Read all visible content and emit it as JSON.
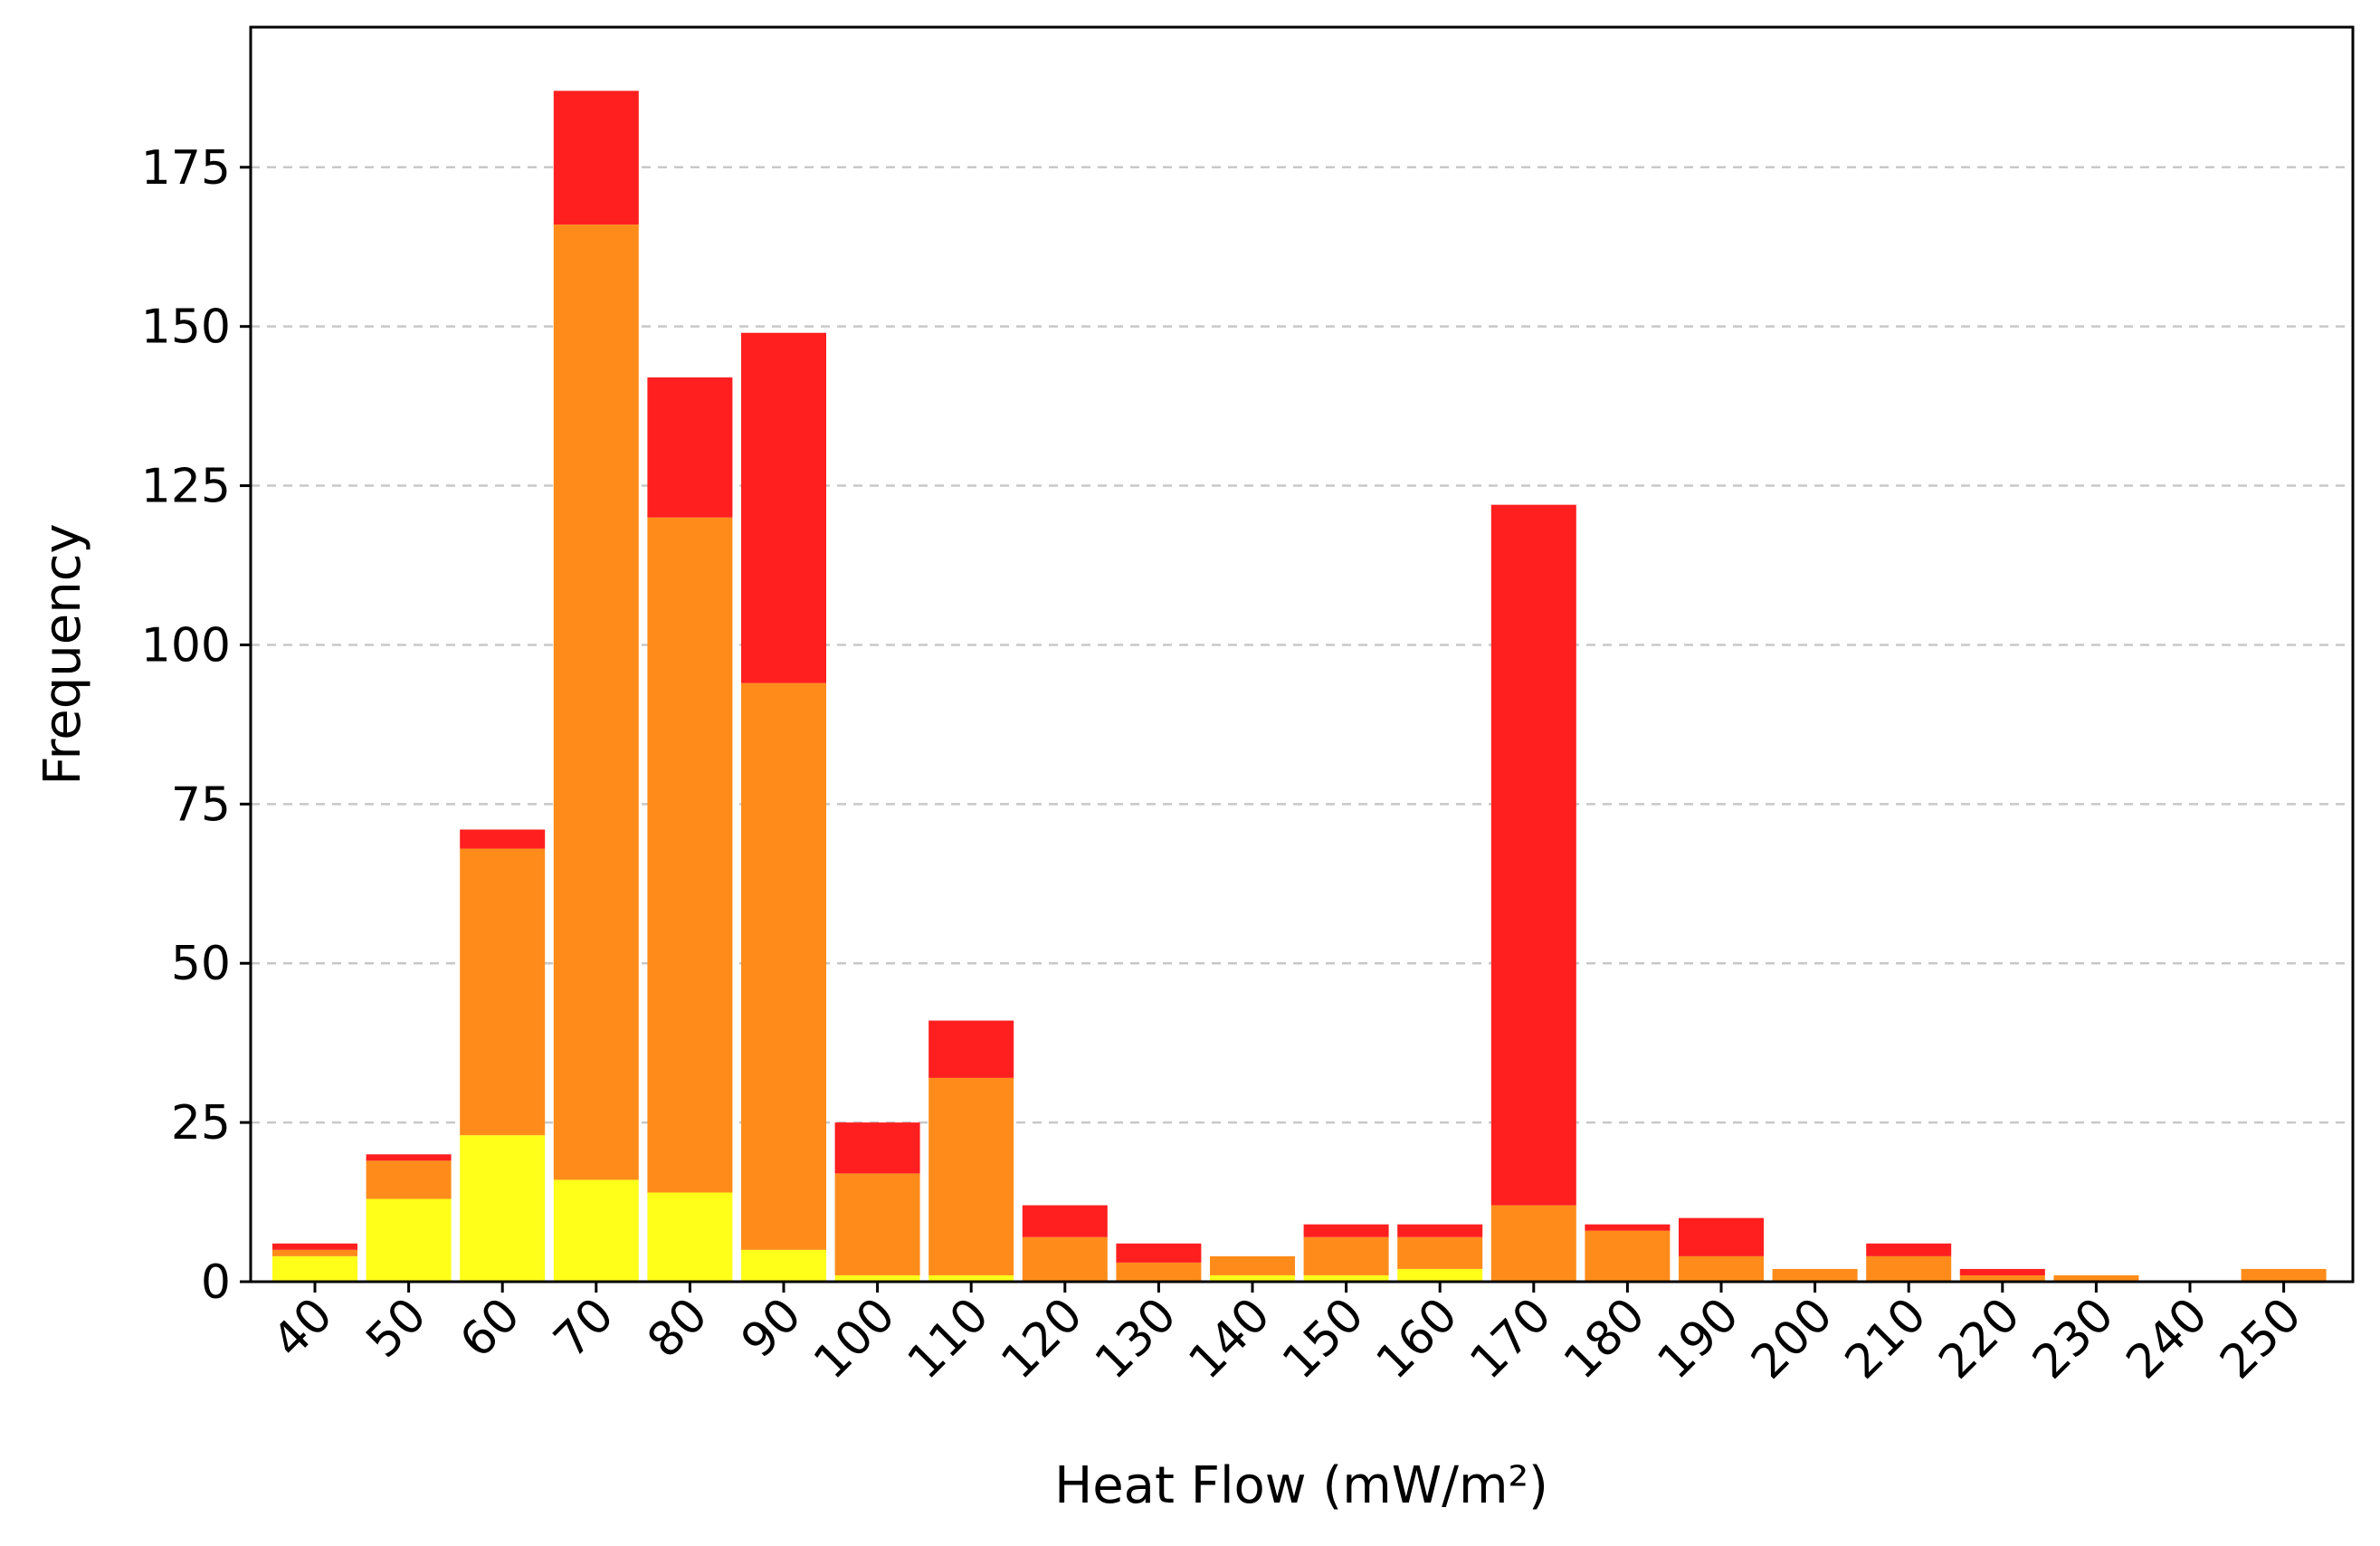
{
  "chart_data": {
    "type": "bar",
    "stacked": true,
    "title": "",
    "xlabel": "Heat Flow (mW/m²)",
    "ylabel": "Frequency",
    "categories": [
      "40",
      "50",
      "60",
      "70",
      "80",
      "90",
      "100",
      "110",
      "120",
      "130",
      "140",
      "150",
      "160",
      "170",
      "180",
      "190",
      "200",
      "210",
      "220",
      "230",
      "240",
      "250"
    ],
    "series": [
      {
        "color": "#ffff1a",
        "values": [
          4,
          13,
          23,
          16,
          14,
          5,
          1,
          1,
          0,
          0,
          1,
          1,
          2,
          0,
          0,
          0,
          0,
          0,
          0,
          0,
          0,
          0
        ]
      },
      {
        "color": "#ff8c1a",
        "values": [
          1,
          6,
          45,
          150,
          106,
          89,
          16,
          31,
          7,
          3,
          3,
          6,
          5,
          12,
          8,
          4,
          2,
          4,
          1,
          1,
          0,
          2
        ]
      },
      {
        "color": "#ff1f1f",
        "values": [
          1,
          1,
          3,
          21,
          22,
          55,
          8,
          9,
          5,
          3,
          0,
          2,
          2,
          110,
          1,
          6,
          0,
          2,
          1,
          0,
          0,
          0
        ]
      }
    ],
    "ylim": [
      0,
      197
    ],
    "yticks": [
      0,
      25,
      50,
      75,
      100,
      125,
      150,
      175
    ],
    "grid": "y-dashed",
    "legend": "none"
  }
}
